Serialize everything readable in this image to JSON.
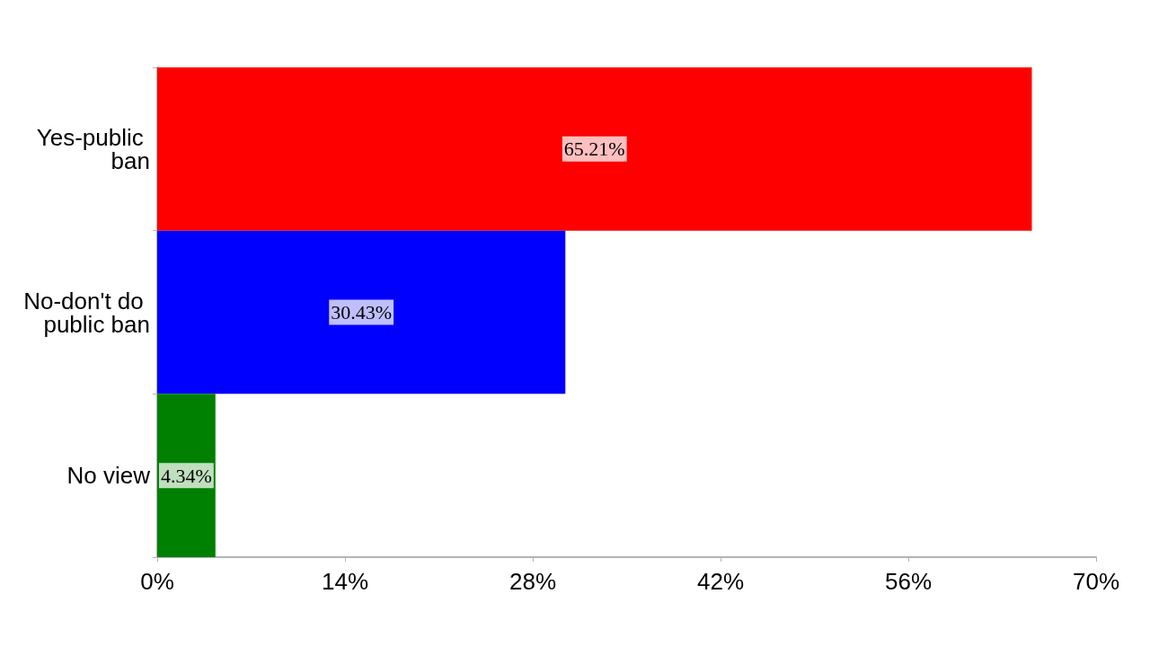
{
  "chart_data": {
    "type": "bar",
    "orientation": "horizontal",
    "categories": [
      "Yes-public ban",
      "No-don't do public ban",
      "No view"
    ],
    "values": [
      65.21,
      30.43,
      4.34
    ],
    "colors": [
      "#ff0000",
      "#0000ff",
      "#008000"
    ],
    "value_labels": [
      "65.21%",
      "30.43%",
      "4.34%"
    ],
    "xlim": [
      0,
      70
    ],
    "xticks": [
      {
        "value": 0,
        "label": "0%"
      },
      {
        "value": 14,
        "label": "14%"
      },
      {
        "value": 28,
        "label": "28%"
      },
      {
        "value": 42,
        "label": "42%"
      },
      {
        "value": 56,
        "label": "56%"
      },
      {
        "value": 70,
        "label": "70%"
      }
    ]
  }
}
